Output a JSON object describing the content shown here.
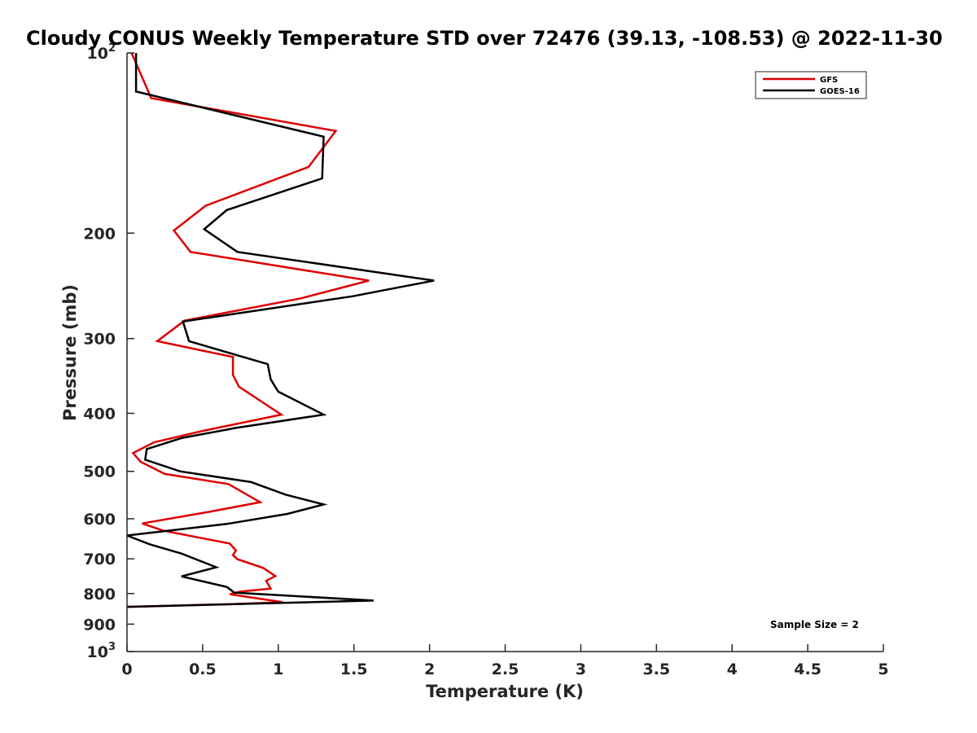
{
  "chart_data": {
    "type": "line",
    "title": "Cloudy CONUS Weekly Temperature STD over 72476 (39.13, -108.53) @ 2022-11-30",
    "xlabel": "Temperature (K)",
    "ylabel": "Pressure (mb)",
    "xlim": [
      0,
      5
    ],
    "ylim": [
      100,
      1000
    ],
    "yscale": "log",
    "y_reversed": true,
    "grid": false,
    "x_ticks": [
      "0",
      "0.5",
      "1",
      "1.5",
      "2",
      "2.5",
      "3",
      "3.5",
      "4",
      "4.5",
      "5"
    ],
    "y_ticks": [
      {
        "value": 100,
        "base": "10",
        "exp": "2"
      },
      {
        "value": 200,
        "label": "200"
      },
      {
        "value": 300,
        "label": "300"
      },
      {
        "value": 400,
        "label": "400"
      },
      {
        "value": 500,
        "label": "500"
      },
      {
        "value": 600,
        "label": "600"
      },
      {
        "value": 700,
        "label": "700"
      },
      {
        "value": 800,
        "label": "800"
      },
      {
        "value": 900,
        "label": "900"
      },
      {
        "value": 1000,
        "base": "10",
        "exp": "3"
      }
    ],
    "legend_position": "top-right",
    "annotation": "Sample Size = 2",
    "series": [
      {
        "name": "GFS",
        "color": "#dd0000",
        "points": [
          [
            0.03,
            100
          ],
          [
            0.16,
            119
          ],
          [
            1.38,
            135
          ],
          [
            1.2,
            155
          ],
          [
            0.52,
            180
          ],
          [
            0.31,
            198
          ],
          [
            0.42,
            215
          ],
          [
            1.6,
            240
          ],
          [
            1.15,
            257
          ],
          [
            0.38,
            280
          ],
          [
            0.2,
            303
          ],
          [
            0.7,
            322
          ],
          [
            0.7,
            345
          ],
          [
            0.74,
            361
          ],
          [
            1.02,
            402
          ],
          [
            0.5,
            428
          ],
          [
            0.18,
            447
          ],
          [
            0.04,
            466
          ],
          [
            0.09,
            482
          ],
          [
            0.25,
            505
          ],
          [
            0.67,
            525
          ],
          [
            0.88,
            563
          ],
          [
            0.53,
            585
          ],
          [
            0.1,
            611
          ],
          [
            0.24,
            628
          ],
          [
            0.68,
            660
          ],
          [
            0.72,
            678
          ],
          [
            0.7,
            690
          ],
          [
            0.73,
            701
          ],
          [
            0.9,
            725
          ],
          [
            0.98,
            748
          ],
          [
            0.92,
            762
          ],
          [
            0.95,
            785
          ],
          [
            0.75,
            794
          ],
          [
            0.68,
            802
          ],
          [
            1.03,
            827
          ],
          [
            0.7,
            833
          ],
          [
            0.0,
            842
          ]
        ]
      },
      {
        "name": "GOES-16",
        "color": "#000000",
        "points": [
          [
            0.06,
            100
          ],
          [
            0.06,
            116
          ],
          [
            1.3,
            138
          ],
          [
            1.29,
            162
          ],
          [
            0.66,
            183
          ],
          [
            0.51,
            197
          ],
          [
            0.73,
            215
          ],
          [
            2.03,
            240
          ],
          [
            1.49,
            255
          ],
          [
            0.37,
            281
          ],
          [
            0.41,
            303
          ],
          [
            0.93,
            331
          ],
          [
            0.95,
            351
          ],
          [
            1.0,
            368
          ],
          [
            1.3,
            402
          ],
          [
            0.72,
            423
          ],
          [
            0.36,
            440
          ],
          [
            0.13,
            459
          ],
          [
            0.12,
            478
          ],
          [
            0.35,
            500
          ],
          [
            0.82,
            521
          ],
          [
            1.05,
            547
          ],
          [
            1.3,
            568
          ],
          [
            1.06,
            589
          ],
          [
            0.66,
            612
          ],
          [
            0.0,
            640
          ],
          [
            0.15,
            662
          ],
          [
            0.36,
            686
          ],
          [
            0.59,
            723
          ],
          [
            0.36,
            749
          ],
          [
            0.66,
            780
          ],
          [
            0.71,
            797
          ],
          [
            1.63,
            822
          ],
          [
            0.0,
            842
          ]
        ]
      }
    ]
  }
}
